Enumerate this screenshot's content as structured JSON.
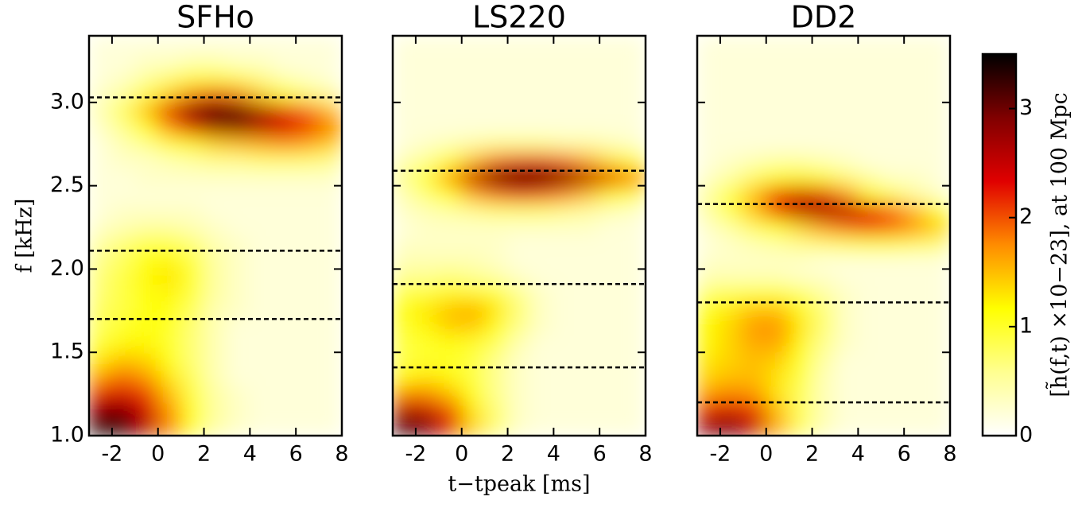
{
  "chart_data": [
    {
      "type": "heatmap",
      "title": "SFHo",
      "ylabel": "f [kHz]",
      "x": [
        -2.5,
        -1.5,
        -0.5,
        0.5,
        1.5,
        2.5,
        3.5,
        4.5,
        5.5,
        6.5,
        7.5
      ],
      "y": [
        1.05,
        1.15,
        1.25,
        1.35,
        1.45,
        1.55,
        1.65,
        1.75,
        1.85,
        1.95,
        2.05,
        2.15,
        2.25,
        2.35,
        2.45,
        2.55,
        2.65,
        2.75,
        2.85,
        2.95,
        3.05,
        3.15,
        3.25,
        3.35
      ],
      "z": [
        [
          3.5,
          3.3,
          2.6,
          1.8,
          1.0,
          0.5,
          0.3,
          0.2,
          0.2,
          0.2,
          0.2
        ],
        [
          2.9,
          2.9,
          2.4,
          1.7,
          1.0,
          0.5,
          0.3,
          0.2,
          0.2,
          0.2,
          0.2
        ],
        [
          2.3,
          2.4,
          2.1,
          1.5,
          0.9,
          0.5,
          0.3,
          0.2,
          0.2,
          0.2,
          0.2
        ],
        [
          1.7,
          1.9,
          1.7,
          1.3,
          0.8,
          0.4,
          0.2,
          0.2,
          0.2,
          0.2,
          0.2
        ],
        [
          1.3,
          1.5,
          1.4,
          1.1,
          0.7,
          0.4,
          0.2,
          0.2,
          0.2,
          0.2,
          0.2
        ],
        [
          1.0,
          1.2,
          1.2,
          1.0,
          0.7,
          0.4,
          0.2,
          0.2,
          0.2,
          0.2,
          0.2
        ],
        [
          0.8,
          1.0,
          1.1,
          1.0,
          0.7,
          0.4,
          0.2,
          0.2,
          0.2,
          0.2,
          0.2
        ],
        [
          0.8,
          0.9,
          1.1,
          1.1,
          0.8,
          0.4,
          0.3,
          0.2,
          0.2,
          0.2,
          0.2
        ],
        [
          0.7,
          0.9,
          1.1,
          1.2,
          0.9,
          0.5,
          0.3,
          0.2,
          0.2,
          0.2,
          0.2
        ],
        [
          0.7,
          0.9,
          1.2,
          1.3,
          1.0,
          0.5,
          0.3,
          0.2,
          0.2,
          0.2,
          0.2
        ],
        [
          0.6,
          0.8,
          1.1,
          1.2,
          0.9,
          0.5,
          0.3,
          0.2,
          0.2,
          0.2,
          0.2
        ],
        [
          0.5,
          0.7,
          0.9,
          0.9,
          0.7,
          0.4,
          0.3,
          0.2,
          0.2,
          0.2,
          0.2
        ],
        [
          0.3,
          0.4,
          0.5,
          0.5,
          0.4,
          0.3,
          0.2,
          0.2,
          0.2,
          0.2,
          0.2
        ],
        [
          0.2,
          0.3,
          0.3,
          0.3,
          0.3,
          0.2,
          0.2,
          0.2,
          0.2,
          0.2,
          0.2
        ],
        [
          0.2,
          0.2,
          0.2,
          0.2,
          0.2,
          0.2,
          0.2,
          0.2,
          0.2,
          0.2,
          0.2
        ],
        [
          0.2,
          0.2,
          0.3,
          0.3,
          0.3,
          0.3,
          0.3,
          0.3,
          0.3,
          0.3,
          0.3
        ],
        [
          0.2,
          0.3,
          0.3,
          0.4,
          0.5,
          0.6,
          0.6,
          0.7,
          0.7,
          0.7,
          0.6
        ],
        [
          0.2,
          0.4,
          0.6,
          0.9,
          1.2,
          1.4,
          1.5,
          1.6,
          1.7,
          1.6,
          1.4
        ],
        [
          0.3,
          0.6,
          1.1,
          1.7,
          2.3,
          2.7,
          2.8,
          2.6,
          2.4,
          2.1,
          1.8
        ],
        [
          0.4,
          0.8,
          1.5,
          2.3,
          3.0,
          3.4,
          3.2,
          2.7,
          2.3,
          1.9,
          1.5
        ],
        [
          0.3,
          0.5,
          0.9,
          1.4,
          1.8,
          2.0,
          1.8,
          1.4,
          1.0,
          0.7,
          0.5
        ],
        [
          0.2,
          0.3,
          0.5,
          0.7,
          0.9,
          0.9,
          0.8,
          0.6,
          0.4,
          0.3,
          0.2
        ],
        [
          0.2,
          0.2,
          0.3,
          0.3,
          0.4,
          0.4,
          0.3,
          0.3,
          0.2,
          0.2,
          0.2
        ],
        [
          0.2,
          0.2,
          0.2,
          0.2,
          0.2,
          0.2,
          0.2,
          0.2,
          0.2,
          0.2,
          0.2
        ]
      ],
      "hlines": [
        3.03,
        2.11,
        1.7
      ],
      "xlim": [
        -3,
        8
      ],
      "ylim": [
        1,
        3.4
      ],
      "xticks": [
        -2,
        0,
        2,
        4,
        6,
        8
      ],
      "yticks": [
        {
          "value": 1,
          "label": "1.0"
        },
        1.5,
        {
          "value": 2,
          "label": "2.0"
        },
        2.5,
        {
          "value": 3,
          "label": "3.0"
        }
      ]
    },
    {
      "type": "heatmap",
      "title": "LS220",
      "xlabel": "t−tpeak [ms]",
      "x": [
        -2.5,
        -1.5,
        -0.5,
        0.5,
        1.5,
        2.5,
        3.5,
        4.5,
        5.5,
        6.5,
        7.5
      ],
      "y": [
        1.05,
        1.15,
        1.25,
        1.35,
        1.45,
        1.55,
        1.65,
        1.75,
        1.85,
        1.95,
        2.05,
        2.15,
        2.25,
        2.35,
        2.45,
        2.55,
        2.65,
        2.75,
        2.85,
        2.95,
        3.05,
        3.15,
        3.25,
        3.35
      ],
      "z": [
        [
          3.3,
          3.0,
          2.3,
          1.4,
          0.7,
          0.3,
          0.2,
          0.2,
          0.2,
          0.2,
          0.2
        ],
        [
          2.6,
          2.5,
          2.0,
          1.3,
          0.7,
          0.3,
          0.2,
          0.2,
          0.2,
          0.2,
          0.2
        ],
        [
          1.8,
          1.8,
          1.5,
          1.1,
          0.6,
          0.3,
          0.2,
          0.2,
          0.2,
          0.2,
          0.2
        ],
        [
          1.2,
          1.3,
          1.2,
          0.9,
          0.6,
          0.3,
          0.2,
          0.2,
          0.2,
          0.2,
          0.2
        ],
        [
          0.9,
          1.0,
          1.0,
          0.9,
          0.6,
          0.3,
          0.2,
          0.2,
          0.2,
          0.2,
          0.2
        ],
        [
          0.9,
          1.0,
          1.1,
          1.0,
          0.8,
          0.4,
          0.2,
          0.2,
          0.2,
          0.2,
          0.2
        ],
        [
          1.0,
          1.2,
          1.4,
          1.4,
          1.1,
          0.6,
          0.3,
          0.2,
          0.2,
          0.2,
          0.2
        ],
        [
          1.1,
          1.3,
          1.5,
          1.6,
          1.3,
          0.7,
          0.3,
          0.2,
          0.2,
          0.2,
          0.2
        ],
        [
          0.9,
          1.0,
          1.2,
          1.2,
          1.0,
          0.6,
          0.3,
          0.2,
          0.2,
          0.2,
          0.2
        ],
        [
          0.6,
          0.6,
          0.7,
          0.6,
          0.5,
          0.3,
          0.2,
          0.2,
          0.2,
          0.2,
          0.2
        ],
        [
          0.4,
          0.4,
          0.4,
          0.4,
          0.3,
          0.2,
          0.2,
          0.2,
          0.2,
          0.2,
          0.2
        ],
        [
          0.3,
          0.3,
          0.3,
          0.3,
          0.3,
          0.2,
          0.2,
          0.2,
          0.2,
          0.2,
          0.2
        ],
        [
          0.2,
          0.3,
          0.3,
          0.3,
          0.3,
          0.3,
          0.3,
          0.3,
          0.3,
          0.2,
          0.2
        ],
        [
          0.3,
          0.4,
          0.5,
          0.6,
          0.7,
          0.7,
          0.7,
          0.6,
          0.5,
          0.4,
          0.3
        ],
        [
          0.4,
          0.7,
          1.1,
          1.6,
          1.9,
          2.1,
          2.0,
          1.8,
          1.5,
          1.2,
          0.9
        ],
        [
          0.6,
          1.0,
          1.7,
          2.5,
          3.1,
          3.4,
          3.3,
          3.0,
          2.6,
          2.2,
          1.8
        ],
        [
          0.4,
          0.6,
          1.0,
          1.5,
          1.9,
          2.1,
          2.1,
          1.9,
          1.6,
          1.3,
          1.0
        ],
        [
          0.2,
          0.3,
          0.4,
          0.5,
          0.6,
          0.6,
          0.6,
          0.5,
          0.5,
          0.4,
          0.3
        ],
        [
          0.2,
          0.2,
          0.2,
          0.2,
          0.2,
          0.2,
          0.2,
          0.2,
          0.2,
          0.2,
          0.2
        ],
        [
          0.2,
          0.2,
          0.2,
          0.2,
          0.2,
          0.2,
          0.2,
          0.2,
          0.2,
          0.2,
          0.2
        ],
        [
          0.2,
          0.2,
          0.2,
          0.2,
          0.2,
          0.2,
          0.2,
          0.2,
          0.2,
          0.2,
          0.2
        ],
        [
          0.2,
          0.2,
          0.2,
          0.2,
          0.2,
          0.2,
          0.2,
          0.2,
          0.2,
          0.2,
          0.2
        ],
        [
          0.2,
          0.2,
          0.2,
          0.2,
          0.2,
          0.2,
          0.2,
          0.2,
          0.2,
          0.2,
          0.2
        ],
        [
          0.2,
          0.2,
          0.2,
          0.2,
          0.2,
          0.2,
          0.2,
          0.2,
          0.2,
          0.2,
          0.2
        ]
      ],
      "hlines": [
        2.59,
        1.91,
        1.41
      ],
      "xlim": [
        -3,
        8
      ],
      "ylim": [
        1,
        3.4
      ],
      "xticks": [
        -2,
        0,
        2,
        4,
        6,
        8
      ],
      "yticks": [
        1,
        1.5,
        2,
        2.5,
        3
      ]
    },
    {
      "type": "heatmap",
      "title": "DD2",
      "x": [
        -2.5,
        -1.5,
        -0.5,
        0.5,
        1.5,
        2.5,
        3.5,
        4.5,
        5.5,
        6.5,
        7.5
      ],
      "y": [
        1.05,
        1.15,
        1.25,
        1.35,
        1.45,
        1.55,
        1.65,
        1.75,
        1.85,
        1.95,
        2.05,
        2.15,
        2.25,
        2.35,
        2.45,
        2.55,
        2.65,
        2.75,
        2.85,
        2.95,
        3.05,
        3.15,
        3.25,
        3.35
      ],
      "z": [
        [
          2.9,
          3.0,
          2.5,
          1.6,
          0.8,
          0.4,
          0.2,
          0.2,
          0.2,
          0.2,
          0.2
        ],
        [
          2.3,
          2.4,
          2.1,
          1.5,
          0.8,
          0.4,
          0.2,
          0.2,
          0.2,
          0.2,
          0.2
        ],
        [
          1.7,
          1.8,
          1.7,
          1.3,
          0.8,
          0.4,
          0.2,
          0.2,
          0.2,
          0.2,
          0.2
        ],
        [
          1.4,
          1.5,
          1.5,
          1.3,
          0.9,
          0.4,
          0.2,
          0.2,
          0.2,
          0.2,
          0.2
        ],
        [
          1.3,
          1.4,
          1.5,
          1.4,
          1.0,
          0.5,
          0.2,
          0.2,
          0.2,
          0.2,
          0.2
        ],
        [
          1.2,
          1.4,
          1.6,
          1.6,
          1.2,
          0.6,
          0.3,
          0.2,
          0.2,
          0.2,
          0.2
        ],
        [
          1.2,
          1.4,
          1.7,
          1.7,
          1.3,
          0.7,
          0.3,
          0.2,
          0.2,
          0.2,
          0.2
        ],
        [
          1.1,
          1.3,
          1.5,
          1.5,
          1.2,
          0.7,
          0.3,
          0.2,
          0.2,
          0.2,
          0.2
        ],
        [
          0.8,
          0.9,
          1.0,
          1.0,
          0.8,
          0.5,
          0.3,
          0.2,
          0.2,
          0.2,
          0.2
        ],
        [
          0.4,
          0.4,
          0.4,
          0.4,
          0.3,
          0.3,
          0.2,
          0.2,
          0.2,
          0.2,
          0.2
        ],
        [
          0.3,
          0.3,
          0.3,
          0.3,
          0.3,
          0.2,
          0.2,
          0.2,
          0.2,
          0.2,
          0.2
        ],
        [
          0.2,
          0.3,
          0.4,
          0.5,
          0.6,
          0.7,
          0.8,
          0.9,
          0.9,
          0.8,
          0.7
        ],
        [
          0.3,
          0.5,
          0.8,
          1.1,
          1.4,
          1.7,
          1.9,
          2.0,
          1.9,
          1.7,
          1.4
        ],
        [
          0.5,
          0.9,
          1.5,
          2.1,
          2.6,
          2.7,
          2.6,
          2.3,
          1.9,
          1.5,
          1.1
        ],
        [
          0.5,
          0.9,
          1.5,
          2.1,
          2.4,
          2.2,
          1.7,
          1.2,
          0.8,
          0.5,
          0.3
        ],
        [
          0.3,
          0.5,
          0.8,
          1.1,
          1.2,
          1.0,
          0.7,
          0.5,
          0.3,
          0.3,
          0.2
        ],
        [
          0.2,
          0.3,
          0.4,
          0.5,
          0.5,
          0.4,
          0.3,
          0.2,
          0.2,
          0.2,
          0.2
        ],
        [
          0.2,
          0.2,
          0.2,
          0.2,
          0.2,
          0.2,
          0.2,
          0.2,
          0.2,
          0.2,
          0.2
        ],
        [
          0.2,
          0.2,
          0.2,
          0.2,
          0.2,
          0.2,
          0.2,
          0.2,
          0.2,
          0.2,
          0.2
        ],
        [
          0.2,
          0.2,
          0.2,
          0.2,
          0.2,
          0.2,
          0.2,
          0.2,
          0.2,
          0.2,
          0.2
        ],
        [
          0.2,
          0.2,
          0.2,
          0.2,
          0.2,
          0.2,
          0.2,
          0.2,
          0.2,
          0.2,
          0.2
        ],
        [
          0.2,
          0.2,
          0.2,
          0.2,
          0.2,
          0.2,
          0.2,
          0.2,
          0.2,
          0.2,
          0.2
        ],
        [
          0.2,
          0.2,
          0.2,
          0.2,
          0.2,
          0.2,
          0.2,
          0.2,
          0.2,
          0.2,
          0.2
        ],
        [
          0.2,
          0.2,
          0.2,
          0.2,
          0.2,
          0.2,
          0.2,
          0.2,
          0.2,
          0.2,
          0.2
        ]
      ],
      "hlines": [
        2.39,
        1.8,
        1.2
      ],
      "xlim": [
        -3,
        8
      ],
      "ylim": [
        1,
        3.4
      ],
      "xticks": [
        -2,
        0,
        2,
        4,
        6,
        8
      ],
      "yticks": [
        1,
        1.5,
        2,
        2.5,
        3
      ],
      "colorbar": {
        "label": "[h̃(f,t) ×10−23], at 100 Mpc",
        "clim": [
          0,
          3.5
        ],
        "ticks": [
          0,
          1,
          2,
          3
        ],
        "colormap": [
          "#ffffff",
          "#ffff90",
          "#ffff00",
          "#ff8c00",
          "#e00000",
          "#800000",
          "#000000"
        ]
      }
    }
  ]
}
